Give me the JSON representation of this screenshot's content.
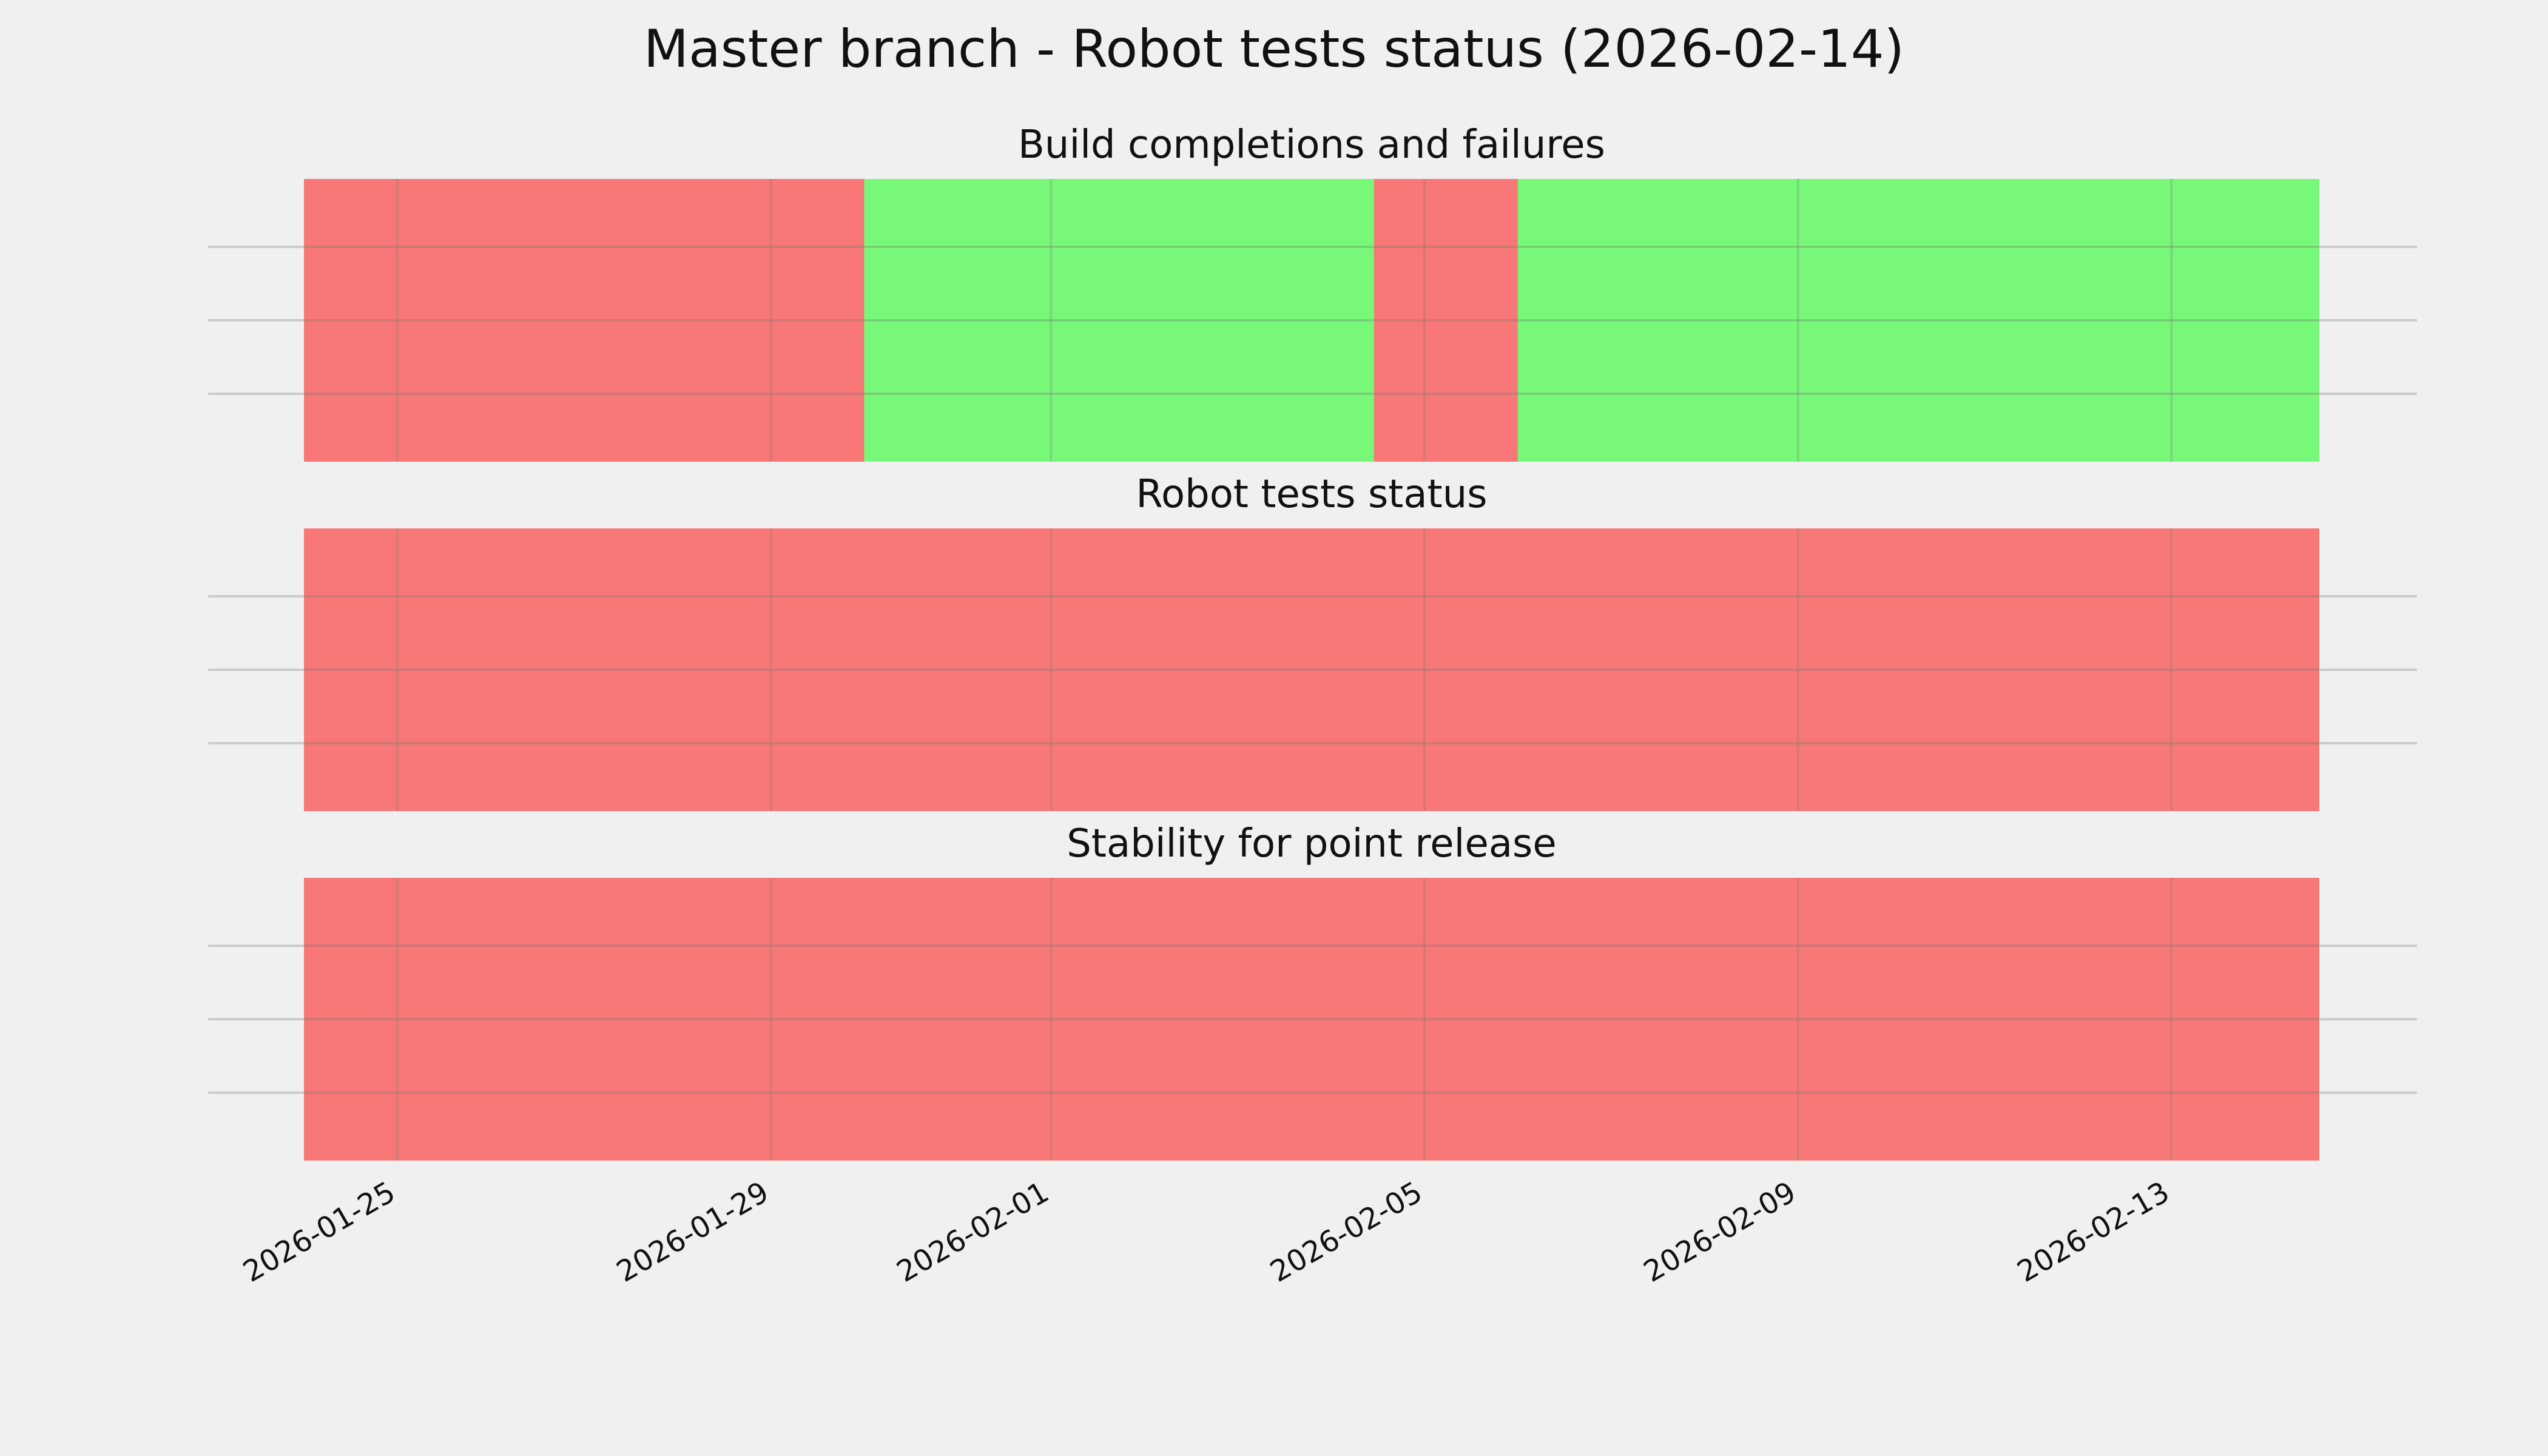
{
  "chart_data": {
    "type": "timeline-status",
    "title": "Master branch - Robot tests status (2026-02-14)",
    "xlim": [
      "2026-01-24T00:00",
      "2026-02-14T14:00"
    ],
    "x_ticks": [
      "2026-01-25",
      "2026-01-29",
      "2026-02-01",
      "2026-02-05",
      "2026-02-09",
      "2026-02-13"
    ],
    "grid": true,
    "colors": {
      "fail": "#f77876",
      "pass": "#78f878",
      "background": "#f0f0f0"
    },
    "panels": [
      {
        "title": "Build completions and failures",
        "segments": [
          {
            "start": "2026-01-24T00:00",
            "end": "2026-01-30T00:00",
            "status": "fail"
          },
          {
            "start": "2026-01-30T00:00",
            "end": "2026-02-04T11:00",
            "status": "pass"
          },
          {
            "start": "2026-02-04T11:00",
            "end": "2026-02-06T00:00",
            "status": "fail"
          },
          {
            "start": "2026-02-06T00:00",
            "end": "2026-02-14T14:00",
            "status": "pass"
          }
        ]
      },
      {
        "title": "Robot tests status",
        "segments": [
          {
            "start": "2026-01-24T00:00",
            "end": "2026-02-14T14:00",
            "status": "fail"
          }
        ]
      },
      {
        "title": "Stability for point release",
        "segments": [
          {
            "start": "2026-01-24T00:00",
            "end": "2026-02-14T14:00",
            "status": "fail"
          }
        ]
      }
    ]
  }
}
